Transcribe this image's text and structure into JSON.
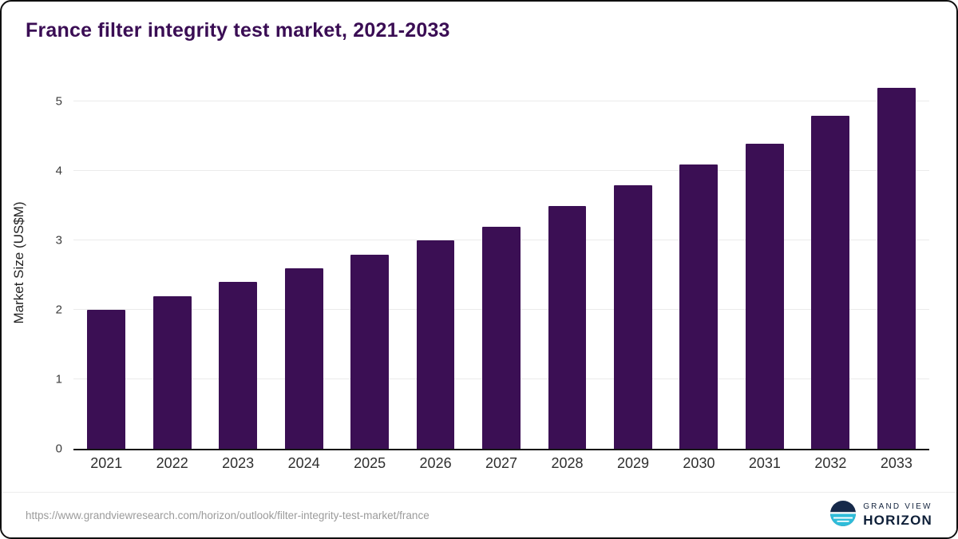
{
  "title": "France filter integrity test market, 2021-2033",
  "chart_data": {
    "type": "bar",
    "title": "France filter integrity test market, 2021-2033",
    "categories": [
      "2021",
      "2022",
      "2023",
      "2024",
      "2025",
      "2026",
      "2027",
      "2028",
      "2029",
      "2030",
      "2031",
      "2032",
      "2033"
    ],
    "values": [
      2.0,
      2.2,
      2.4,
      2.6,
      2.8,
      3.0,
      3.2,
      3.5,
      3.8,
      4.1,
      4.4,
      4.8,
      5.2
    ],
    "xlabel": "",
    "ylabel": "Market Size (US$M)",
    "ylim": [
      0,
      5.35
    ],
    "yticks": [
      0,
      1,
      2,
      3,
      4,
      5
    ],
    "bar_color": "#3b0f54",
    "grid": "horizontal",
    "legend": "none"
  },
  "footer": {
    "source_url": "https://www.grandviewresearch.com/horizon/outlook/filter-integrity-test-market/france",
    "logo_top": "GRAND VIEW",
    "logo_bottom": "HORIZON"
  },
  "colors": {
    "bar": "#3b0f54",
    "title": "#3a0d54",
    "axis_line": "#161616",
    "gridline": "#ebebeb",
    "logo_navy": "#16294a",
    "logo_teal": "#2fbcd9"
  }
}
